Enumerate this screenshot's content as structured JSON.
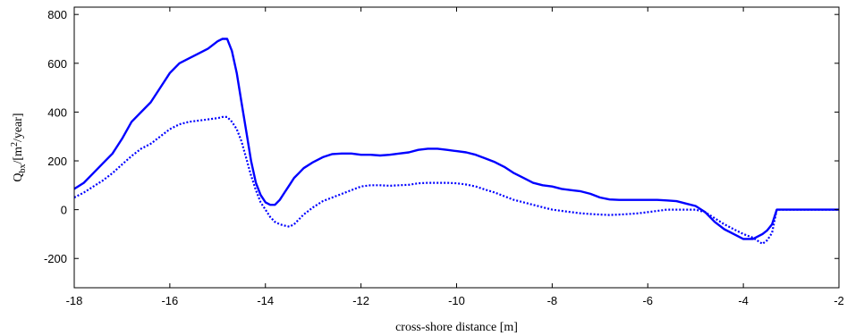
{
  "chart_data": {
    "type": "line",
    "title": "",
    "xlabel": "cross-shore distance [m]",
    "ylabel": {
      "main": "Q",
      "sub": "bx",
      "mid": "/[m",
      "sup": "2",
      "end": "/year]"
    },
    "xlim": [
      -18,
      -2
    ],
    "ylim": [
      -320,
      830
    ],
    "xticks": [
      -18,
      -16,
      -14,
      -12,
      -10,
      -8,
      -6,
      -4,
      -2
    ],
    "yticks": [
      -200,
      0,
      200,
      400,
      600,
      800
    ],
    "xtick_labels": [
      "-18",
      "-16",
      "-14",
      "-12",
      "-10",
      "-8",
      "-6",
      "-4",
      "-2"
    ],
    "ytick_labels": [
      "-200",
      "0",
      "200",
      "400",
      "600",
      "800"
    ],
    "grid": false,
    "color": "#0000ff",
    "series": [
      {
        "style": "solid",
        "x": [
          -18.0,
          -17.8,
          -17.6,
          -17.4,
          -17.2,
          -17.0,
          -16.8,
          -16.6,
          -16.4,
          -16.2,
          -16.0,
          -15.8,
          -15.6,
          -15.4,
          -15.2,
          -15.0,
          -14.9,
          -14.8,
          -14.7,
          -14.6,
          -14.5,
          -14.4,
          -14.3,
          -14.2,
          -14.1,
          -14.0,
          -13.9,
          -13.8,
          -13.7,
          -13.6,
          -13.5,
          -13.4,
          -13.3,
          -13.2,
          -13.0,
          -12.8,
          -12.6,
          -12.4,
          -12.2,
          -12.0,
          -11.8,
          -11.6,
          -11.4,
          -11.2,
          -11.0,
          -10.8,
          -10.6,
          -10.4,
          -10.2,
          -10.0,
          -9.8,
          -9.6,
          -9.4,
          -9.2,
          -9.0,
          -8.8,
          -8.6,
          -8.4,
          -8.2,
          -8.0,
          -7.8,
          -7.6,
          -7.4,
          -7.2,
          -7.0,
          -6.8,
          -6.6,
          -6.4,
          -6.2,
          -6.0,
          -5.8,
          -5.6,
          -5.4,
          -5.2,
          -5.0,
          -4.8,
          -4.6,
          -4.4,
          -4.2,
          -4.0,
          -3.8,
          -3.6,
          -3.5,
          -3.4,
          -3.3,
          -3.25,
          -3.2,
          -3.15,
          -3.1,
          -3.05,
          -3.0,
          -2.8,
          -2.6,
          -2.4,
          -2.2,
          -2.0
        ],
        "y": [
          85,
          110,
          150,
          190,
          230,
          290,
          360,
          400,
          440,
          500,
          560,
          600,
          620,
          640,
          660,
          690,
          700,
          700,
          650,
          560,
          440,
          320,
          200,
          110,
          60,
          30,
          20,
          20,
          40,
          70,
          100,
          130,
          150,
          170,
          195,
          215,
          228,
          230,
          230,
          225,
          225,
          222,
          225,
          230,
          235,
          245,
          250,
          250,
          245,
          240,
          235,
          225,
          210,
          195,
          175,
          150,
          130,
          110,
          100,
          95,
          85,
          80,
          75,
          65,
          50,
          42,
          40,
          40,
          40,
          40,
          40,
          38,
          35,
          25,
          15,
          -10,
          -50,
          -80,
          -100,
          -120,
          -120,
          -100,
          -85,
          -60,
          0,
          0,
          0,
          0,
          0,
          0,
          0,
          0,
          0,
          0,
          0,
          0
        ]
      },
      {
        "style": "dotted",
        "x": [
          -18.0,
          -17.8,
          -17.6,
          -17.4,
          -17.2,
          -17.0,
          -16.8,
          -16.6,
          -16.4,
          -16.2,
          -16.0,
          -15.8,
          -15.6,
          -15.4,
          -15.2,
          -15.0,
          -14.9,
          -14.8,
          -14.7,
          -14.6,
          -14.5,
          -14.4,
          -14.3,
          -14.2,
          -14.1,
          -14.0,
          -13.9,
          -13.8,
          -13.7,
          -13.6,
          -13.5,
          -13.4,
          -13.3,
          -13.2,
          -13.0,
          -12.8,
          -12.6,
          -12.4,
          -12.2,
          -12.0,
          -11.8,
          -11.6,
          -11.4,
          -11.2,
          -11.0,
          -10.8,
          -10.6,
          -10.4,
          -10.2,
          -10.0,
          -9.8,
          -9.6,
          -9.4,
          -9.2,
          -9.0,
          -8.8,
          -8.6,
          -8.4,
          -8.2,
          -8.0,
          -7.8,
          -7.6,
          -7.4,
          -7.2,
          -7.0,
          -6.8,
          -6.6,
          -6.4,
          -6.2,
          -6.0,
          -5.8,
          -5.6,
          -5.4,
          -5.2,
          -5.0,
          -4.8,
          -4.6,
          -4.4,
          -4.2,
          -4.0,
          -3.8,
          -3.6,
          -3.5,
          -3.4,
          -3.3,
          -3.25,
          -3.2,
          -3.15,
          -3.1,
          -3.05,
          -3.0,
          -2.8,
          -2.6,
          -2.4,
          -2.2,
          -2.0
        ],
        "y": [
          50,
          70,
          95,
          120,
          150,
          185,
          220,
          250,
          270,
          300,
          330,
          350,
          360,
          365,
          370,
          375,
          380,
          380,
          360,
          330,
          280,
          210,
          140,
          80,
          30,
          0,
          -30,
          -50,
          -60,
          -65,
          -70,
          -60,
          -40,
          -20,
          10,
          35,
          50,
          65,
          80,
          95,
          100,
          100,
          98,
          100,
          102,
          108,
          110,
          110,
          110,
          108,
          103,
          95,
          82,
          70,
          55,
          40,
          30,
          20,
          10,
          0,
          -5,
          -10,
          -15,
          -18,
          -20,
          -22,
          -20,
          -18,
          -15,
          -10,
          -5,
          0,
          0,
          0,
          0,
          -10,
          -35,
          -60,
          -80,
          -100,
          -115,
          -140,
          -125,
          -95,
          0,
          0,
          0,
          0,
          0,
          0,
          0,
          0,
          0,
          0,
          0,
          0
        ]
      }
    ]
  }
}
